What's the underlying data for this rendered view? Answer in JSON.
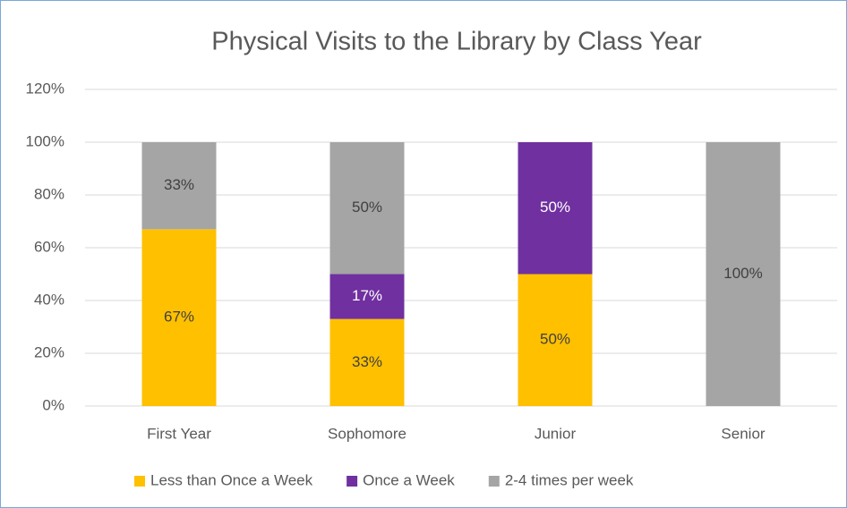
{
  "chart_data": {
    "type": "stacked_bar",
    "title": "Physical Visits to the Library by Class Year",
    "categories": [
      "First Year",
      "Sophomore",
      "Junior",
      "Senior"
    ],
    "series": [
      {
        "name": "Less than Once a Week",
        "color": "#ffc000",
        "values": [
          67,
          33,
          50,
          null
        ],
        "value_labels": [
          "67%",
          "33%",
          "50%",
          null
        ]
      },
      {
        "name": "Once a Week",
        "color": "#7030a0",
        "values": [
          null,
          17,
          50,
          null
        ],
        "value_labels": [
          null,
          "17%",
          "50%",
          null
        ]
      },
      {
        "name": "2-4 times per week",
        "color": "#a5a5a5",
        "values": [
          33,
          50,
          null,
          100
        ],
        "value_labels": [
          "33%",
          "50%",
          null,
          "100%"
        ]
      }
    ],
    "ylim": [
      0,
      120
    ],
    "yticks": [
      {
        "value": 0,
        "label": "0%"
      },
      {
        "value": 20,
        "label": "20%"
      },
      {
        "value": 40,
        "label": "40%"
      },
      {
        "value": 60,
        "label": "60%"
      },
      {
        "value": 80,
        "label": "80%"
      },
      {
        "value": 100,
        "label": "100%"
      },
      {
        "value": 120,
        "label": "120%"
      }
    ],
    "grid": true,
    "legend": "bottom"
  }
}
